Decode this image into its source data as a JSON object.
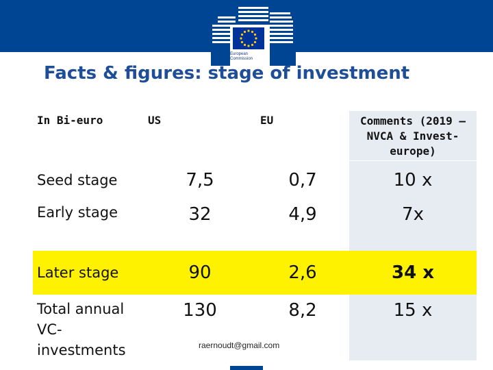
{
  "slide": {
    "title": "Facts & figures: stage of investment",
    "logo_text_line1": "European",
    "logo_text_line2": "Commission",
    "footer_email": "raernoudt@gmail.com"
  },
  "table": {
    "headers": [
      "In Bi-euro",
      "US",
      "EU",
      "Comments (2019 – NVCA & Invest-europe)"
    ],
    "rows": [
      {
        "label": "Seed stage",
        "us": "7,5",
        "eu": "0,7",
        "comment": "10 x",
        "highlight": false
      },
      {
        "label": "Early stage",
        "us": "32",
        "eu": "4,9",
        "comment": "7x",
        "highlight": false
      },
      {
        "label": "Later stage",
        "us": "90",
        "eu": "2,6",
        "comment": "34 x",
        "highlight": true
      },
      {
        "label": "Total annual VC-investments",
        "us": "130",
        "eu": "8,2",
        "comment": "15 x",
        "highlight": false
      }
    ]
  },
  "colors": {
    "brand_blue": "#004494",
    "title_blue": "#1f4e99",
    "highlight_yellow": "#fff200",
    "comments_column_bg": "#e7ebf2"
  }
}
